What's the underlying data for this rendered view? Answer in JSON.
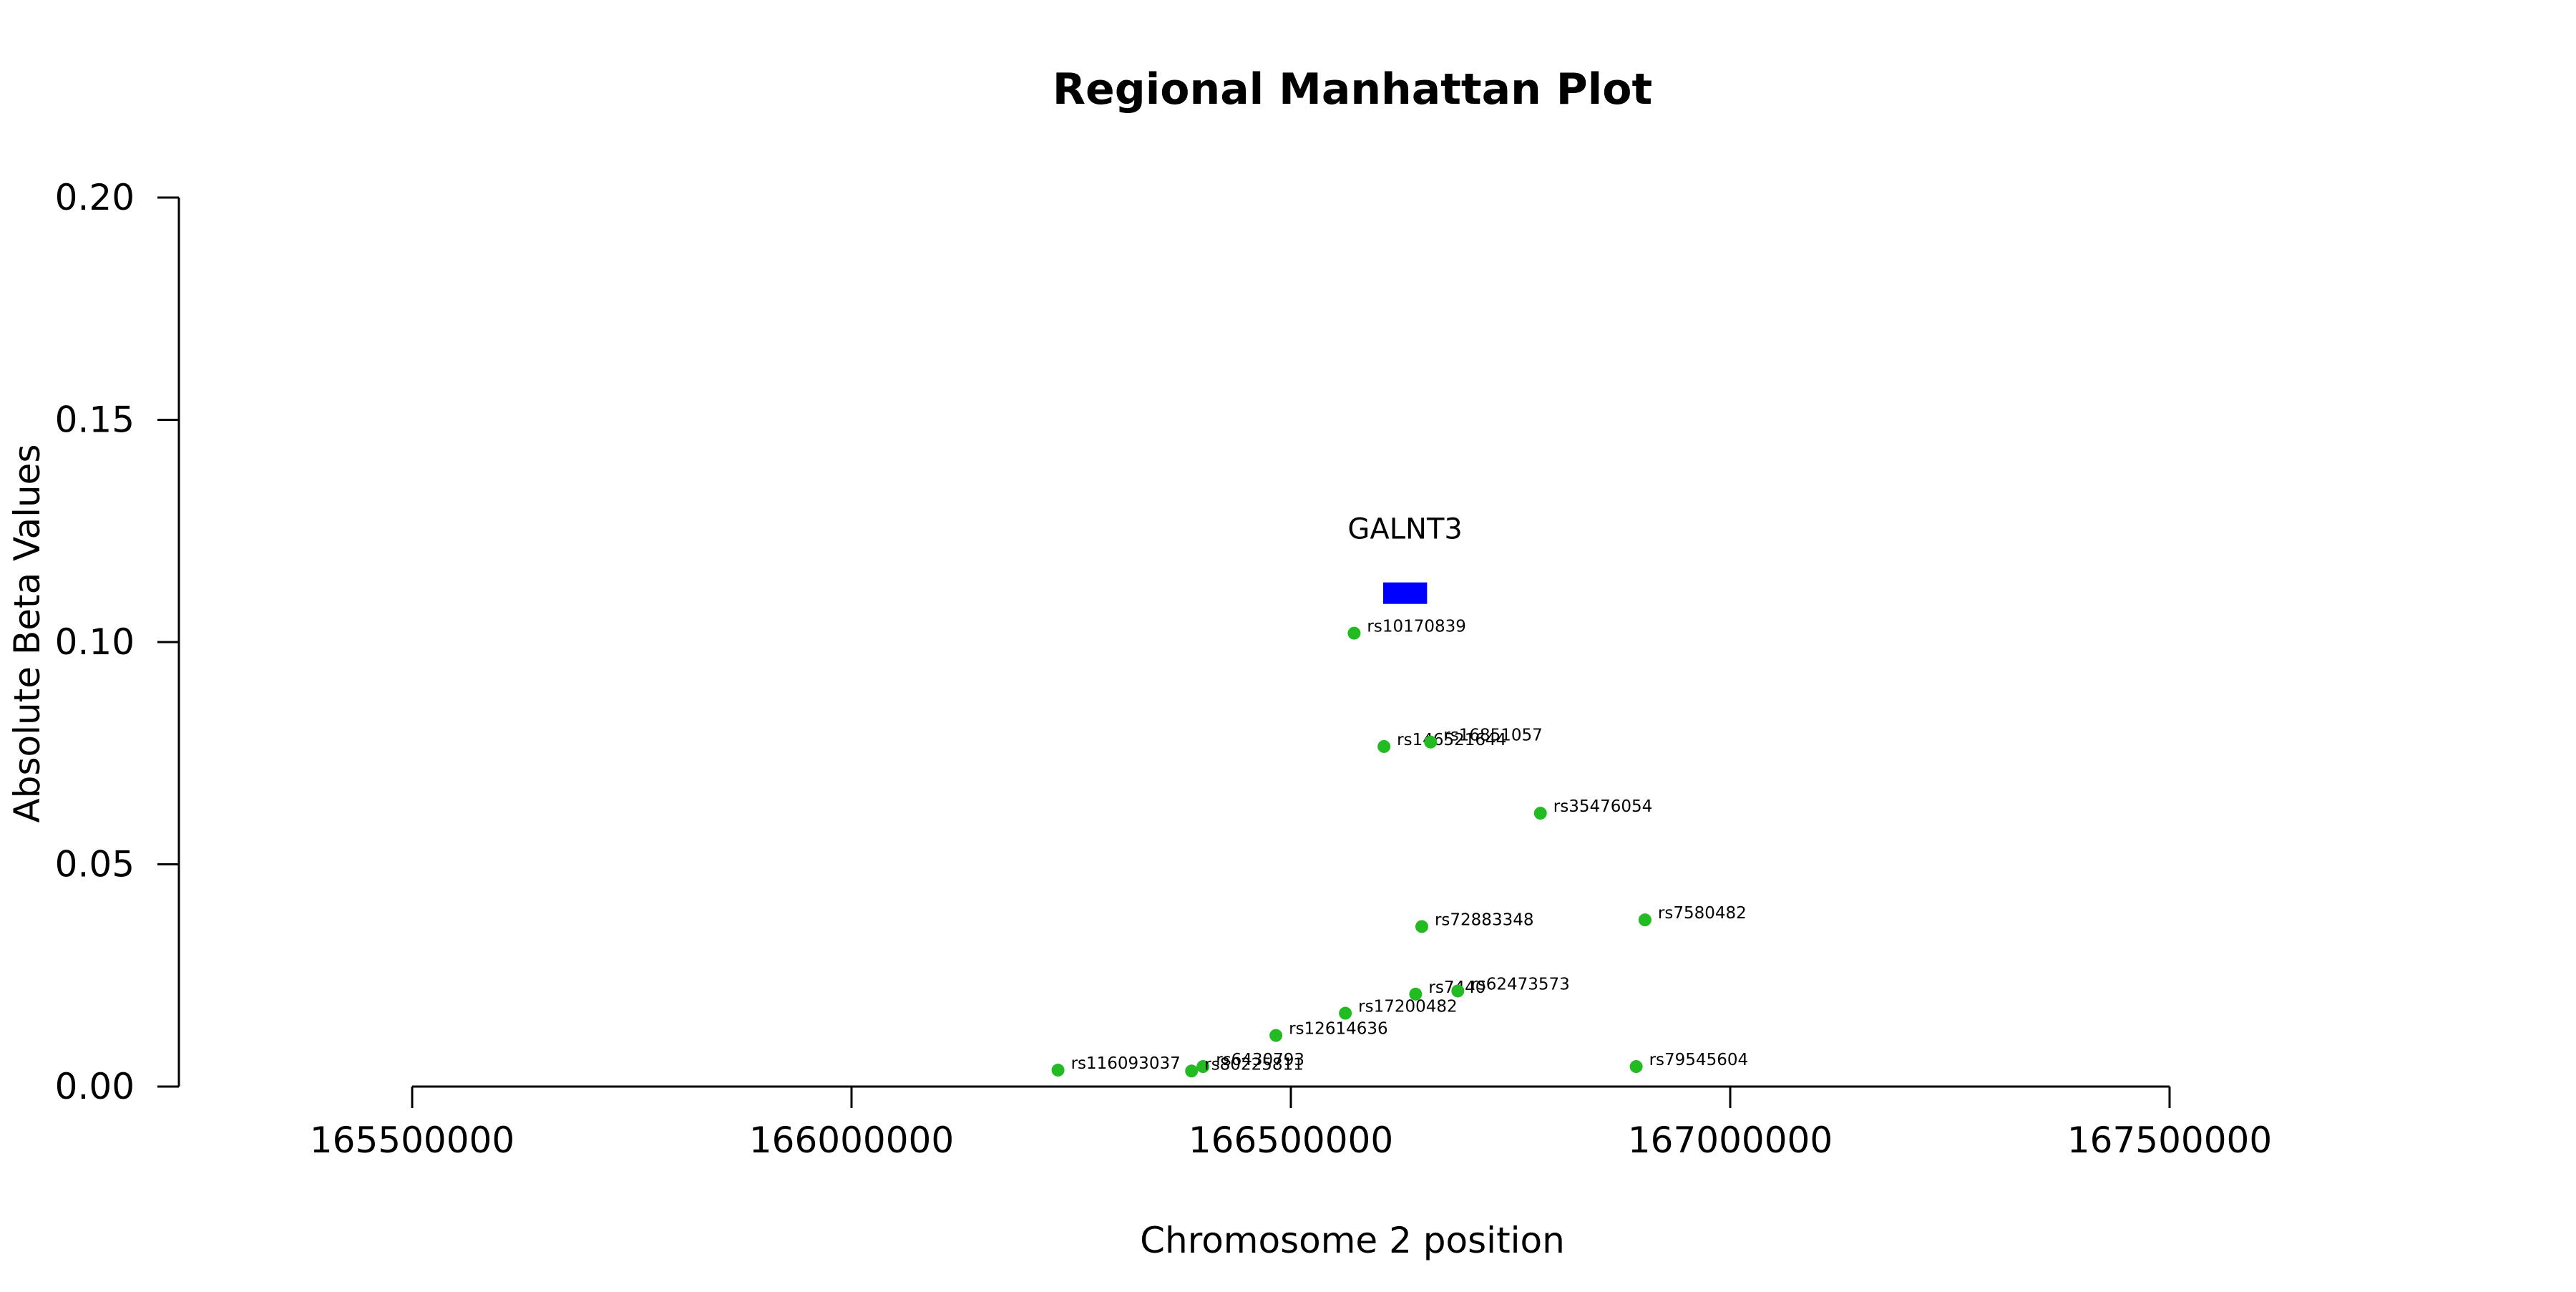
{
  "chart_data": {
    "type": "scatter",
    "title": "Regional Manhattan Plot",
    "xlabel": "Chromosome 2 position",
    "ylabel": "Absolute Beta Values",
    "xlim": [
      165500000,
      167500000
    ],
    "ylim": [
      0,
      0.2
    ],
    "xticks": [
      165500000,
      166000000,
      166500000,
      167000000,
      167500000
    ],
    "xtick_labels": [
      "165500000",
      "166000000",
      "166500000",
      "167000000",
      "167500000"
    ],
    "yticks": [
      0,
      0.05,
      0.1,
      0.15,
      0.2
    ],
    "ytick_labels": [
      "0.00",
      "0.05",
      "0.10",
      "0.15",
      "0.20"
    ],
    "grid": false,
    "point_color": "#22bb22",
    "gene_color": "#0000ff",
    "genes": [
      {
        "name": "GALNT3",
        "start": 166605000,
        "end": 166655000,
        "y": 0.111
      }
    ],
    "points": [
      {
        "label": "rs10170839",
        "x": 166572000,
        "y": 0.102
      },
      {
        "label": "rs146521644",
        "x": 166606000,
        "y": 0.0765
      },
      {
        "label": "rs16851057",
        "x": 166659000,
        "y": 0.0775
      },
      {
        "label": "rs35476054",
        "x": 166784000,
        "y": 0.0615
      },
      {
        "label": "rs72883348",
        "x": 166649000,
        "y": 0.036
      },
      {
        "label": "rs7580482",
        "x": 166903000,
        "y": 0.0375
      },
      {
        "label": "rs7440",
        "x": 166642000,
        "y": 0.0208
      },
      {
        "label": "rs62473573",
        "x": 166690000,
        "y": 0.0215
      },
      {
        "label": "rs17200482",
        "x": 166562000,
        "y": 0.0165
      },
      {
        "label": "rs12614636",
        "x": 166483000,
        "y": 0.0115
      },
      {
        "label": "rs116093037",
        "x": 166235000,
        "y": 0.0037
      },
      {
        "label": "rs6430793",
        "x": 166400000,
        "y": 0.0045
      },
      {
        "label": "rs80225811",
        "x": 166387000,
        "y": 0.0035
      },
      {
        "label": "rs79545604",
        "x": 166893000,
        "y": 0.0045
      }
    ]
  }
}
